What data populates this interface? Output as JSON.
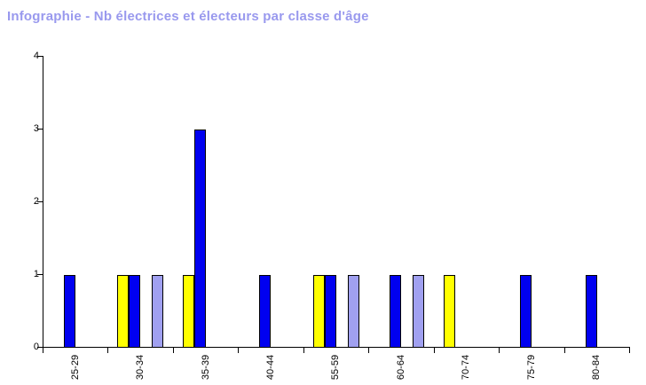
{
  "page": {
    "background_color": "#ffffff"
  },
  "chart_data": {
    "type": "bar",
    "title": "Infographie - Nb électrices et électeurs par classe d'âge",
    "title_color": "#9999ee",
    "categories": [
      "25-29",
      "30-34",
      "35-39",
      "40-44",
      "55-59",
      "60-64",
      "70-74",
      "75-79",
      "80-84"
    ],
    "series": [
      {
        "name": "yellow",
        "color": "#ffff00",
        "values": [
          0,
          1,
          1,
          0,
          1,
          0,
          1,
          0,
          0
        ]
      },
      {
        "name": "blue",
        "color": "#0000f0",
        "values": [
          1,
          1,
          3,
          1,
          1,
          1,
          0,
          1,
          1
        ]
      },
      {
        "name": "lavender",
        "color": "#a0a0f0",
        "values": [
          0,
          1,
          0,
          0,
          1,
          1,
          0,
          0,
          0
        ]
      }
    ],
    "xlabel": "",
    "ylabel": "",
    "ylim": [
      0,
      4
    ],
    "yticks": [
      "0",
      "1",
      "2",
      "3",
      "4"
    ],
    "grid": false,
    "legend": "none",
    "axis_color": "#000000",
    "bar_border_color": "#000000",
    "x_tick_label_rotation": -90
  }
}
